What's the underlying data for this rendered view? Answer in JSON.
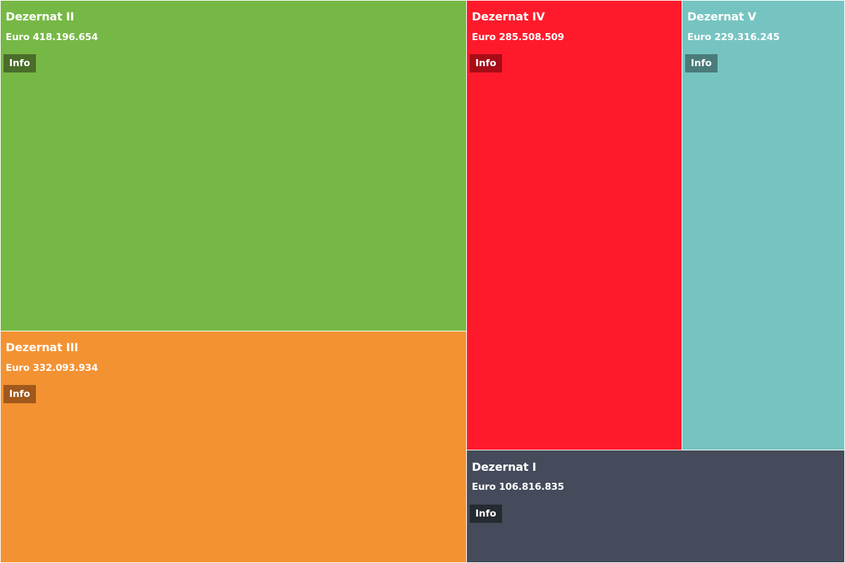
{
  "chart_data": {
    "type": "treemap",
    "currency_label": "Euro",
    "info_label": "Info",
    "items": [
      {
        "name": "Dezernat II",
        "value": 418196654,
        "value_label": "Euro 418.196.654",
        "color": "#76b845",
        "button_color": "#4a6d2a"
      },
      {
        "name": "Dezernat III",
        "value": 332093934,
        "value_label": "Euro 332.093.934",
        "color": "#f39232",
        "button_color": "#a0581c"
      },
      {
        "name": "Dezernat IV",
        "value": 285508509,
        "value_label": "Euro 285.508.509",
        "color": "#ff1a2b",
        "button_color": "#a60d17"
      },
      {
        "name": "Dezernat V",
        "value": 229316245,
        "value_label": "Euro 229.316.245",
        "color": "#76c4c1",
        "button_color": "#4a7b7a"
      },
      {
        "name": "Dezernat I",
        "value": 106816835,
        "value_label": "Euro 106.816.835",
        "color": "#454b5a",
        "button_color": "#262a31"
      }
    ]
  }
}
